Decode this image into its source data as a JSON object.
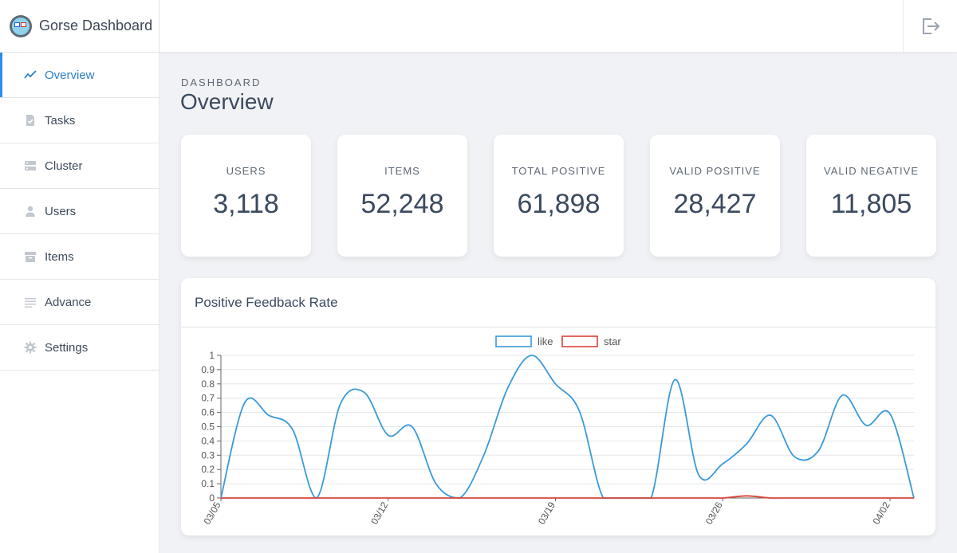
{
  "app": {
    "title": "Gorse Dashboard"
  },
  "sidebar": {
    "items": [
      {
        "label": "Overview",
        "icon": "trend-icon",
        "active": true
      },
      {
        "label": "Tasks",
        "icon": "task-icon",
        "active": false
      },
      {
        "label": "Cluster",
        "icon": "server-icon",
        "active": false
      },
      {
        "label": "Users",
        "icon": "user-icon",
        "active": false
      },
      {
        "label": "Items",
        "icon": "archive-icon",
        "active": false
      },
      {
        "label": "Advance",
        "icon": "list-icon",
        "active": false
      },
      {
        "label": "Settings",
        "icon": "gear-icon",
        "active": false
      }
    ]
  },
  "header": {
    "logout_icon": "logout-icon"
  },
  "page": {
    "eyebrow": "DASHBOARD",
    "title": "Overview"
  },
  "stats": [
    {
      "label": "USERS",
      "value": "3,118"
    },
    {
      "label": "ITEMS",
      "value": "52,248"
    },
    {
      "label": "TOTAL POSITIVE",
      "value": "61,898"
    },
    {
      "label": "VALID POSITIVE",
      "value": "28,427"
    },
    {
      "label": "VALID NEGATIVE",
      "value": "11,805"
    }
  ],
  "chart": {
    "title": "Positive Feedback Rate"
  },
  "colors": {
    "accent": "#2d8cf0",
    "like": "#3a9ad9",
    "star": "#d9443a"
  },
  "chart_data": {
    "type": "line",
    "title": "Positive Feedback Rate",
    "xlabel": "",
    "ylabel": "",
    "ylim": [
      0,
      1
    ],
    "yticks": [
      "0",
      "0.1",
      "0.2",
      "0.3",
      "0.4",
      "0.5",
      "0.6",
      "0.7",
      "0.8",
      "0.9",
      "1"
    ],
    "x": [
      "03/05",
      "03/06",
      "03/07",
      "03/08",
      "03/09",
      "03/10",
      "03/11",
      "03/12",
      "03/13",
      "03/14",
      "03/15",
      "03/16",
      "03/17",
      "03/18",
      "03/19",
      "03/20",
      "03/21",
      "03/22",
      "03/23",
      "03/24",
      "03/25",
      "03/26",
      "03/27",
      "03/28",
      "03/29",
      "03/30",
      "03/31",
      "04/01",
      "04/02",
      "04/03"
    ],
    "xtick_labels": [
      "03/05",
      "03/12",
      "03/19",
      "03/26",
      "04/02"
    ],
    "legend_position": "top",
    "series": [
      {
        "name": "like",
        "color": "#3a9ad9",
        "values": [
          0,
          0.67,
          0.58,
          0.48,
          0,
          0.66,
          0.74,
          0.44,
          0.5,
          0.1,
          0,
          0.3,
          0.77,
          1.0,
          0.8,
          0.61,
          0,
          0,
          0,
          0.83,
          0.16,
          0.24,
          0.38,
          0.58,
          0.29,
          0.33,
          0.72,
          0.51,
          0.59,
          0
        ]
      },
      {
        "name": "star",
        "color": "#d9443a",
        "values": [
          0,
          0,
          0,
          0,
          0,
          0,
          0,
          0,
          0,
          0,
          0,
          0,
          0,
          0,
          0,
          0,
          0,
          0,
          0,
          0,
          0,
          0,
          0.015,
          0,
          0,
          0,
          0,
          0,
          0,
          0
        ]
      }
    ],
    "grid": true
  }
}
